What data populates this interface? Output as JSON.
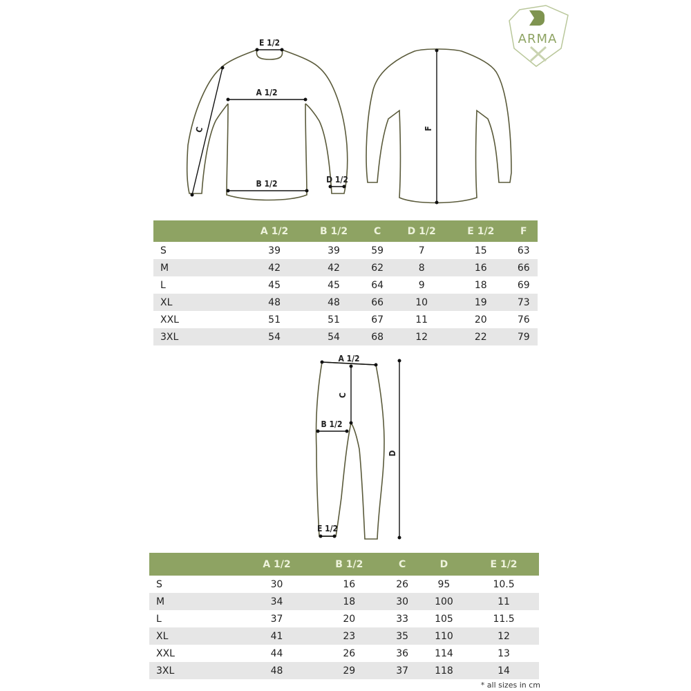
{
  "logo": {
    "text": "ARMA X",
    "mark": "D",
    "color": "#8ea363"
  },
  "shirt": {
    "front_labels": {
      "a": "A 1/2",
      "b": "B 1/2",
      "c": "C",
      "d": "D 1/2",
      "e": "E 1/2"
    },
    "back_labels": {
      "f": "F"
    },
    "table": {
      "headers": [
        "",
        "A 1/2",
        "B 1/2",
        "C",
        "D 1/2",
        "E 1/2",
        "F"
      ],
      "rows": [
        [
          "S",
          "39",
          "39",
          "59",
          "7",
          "15",
          "63"
        ],
        [
          "M",
          "42",
          "42",
          "62",
          "8",
          "16",
          "66"
        ],
        [
          "L",
          "45",
          "45",
          "64",
          "9",
          "18",
          "69"
        ],
        [
          "XL",
          "48",
          "48",
          "66",
          "10",
          "19",
          "73"
        ],
        [
          "XXL",
          "51",
          "51",
          "67",
          "11",
          "20",
          "76"
        ],
        [
          "3XL",
          "54",
          "54",
          "68",
          "12",
          "22",
          "79"
        ]
      ]
    }
  },
  "pants": {
    "labels": {
      "a": "A 1/2",
      "b": "B 1/2",
      "c": "C",
      "d": "D",
      "e": "E 1/2"
    },
    "table": {
      "headers": [
        "",
        "A 1/2",
        "B 1/2",
        "C",
        "D",
        "E 1/2"
      ],
      "rows": [
        [
          "S",
          "30",
          "16",
          "26",
          "95",
          "10.5"
        ],
        [
          "M",
          "34",
          "18",
          "30",
          "100",
          "11"
        ],
        [
          "L",
          "37",
          "20",
          "33",
          "105",
          "11.5"
        ],
        [
          "XL",
          "41",
          "23",
          "35",
          "110",
          "12"
        ],
        [
          "XXL",
          "44",
          "26",
          "36",
          "114",
          "13"
        ],
        [
          "3XL",
          "48",
          "29",
          "37",
          "118",
          "14"
        ]
      ]
    }
  },
  "footnote": "* all sizes in cm",
  "colors": {
    "header_bg": "#8ea363",
    "header_text": "#eef3dc",
    "alt_row": "#e6e6e6",
    "outline": "#5a5a3a"
  }
}
